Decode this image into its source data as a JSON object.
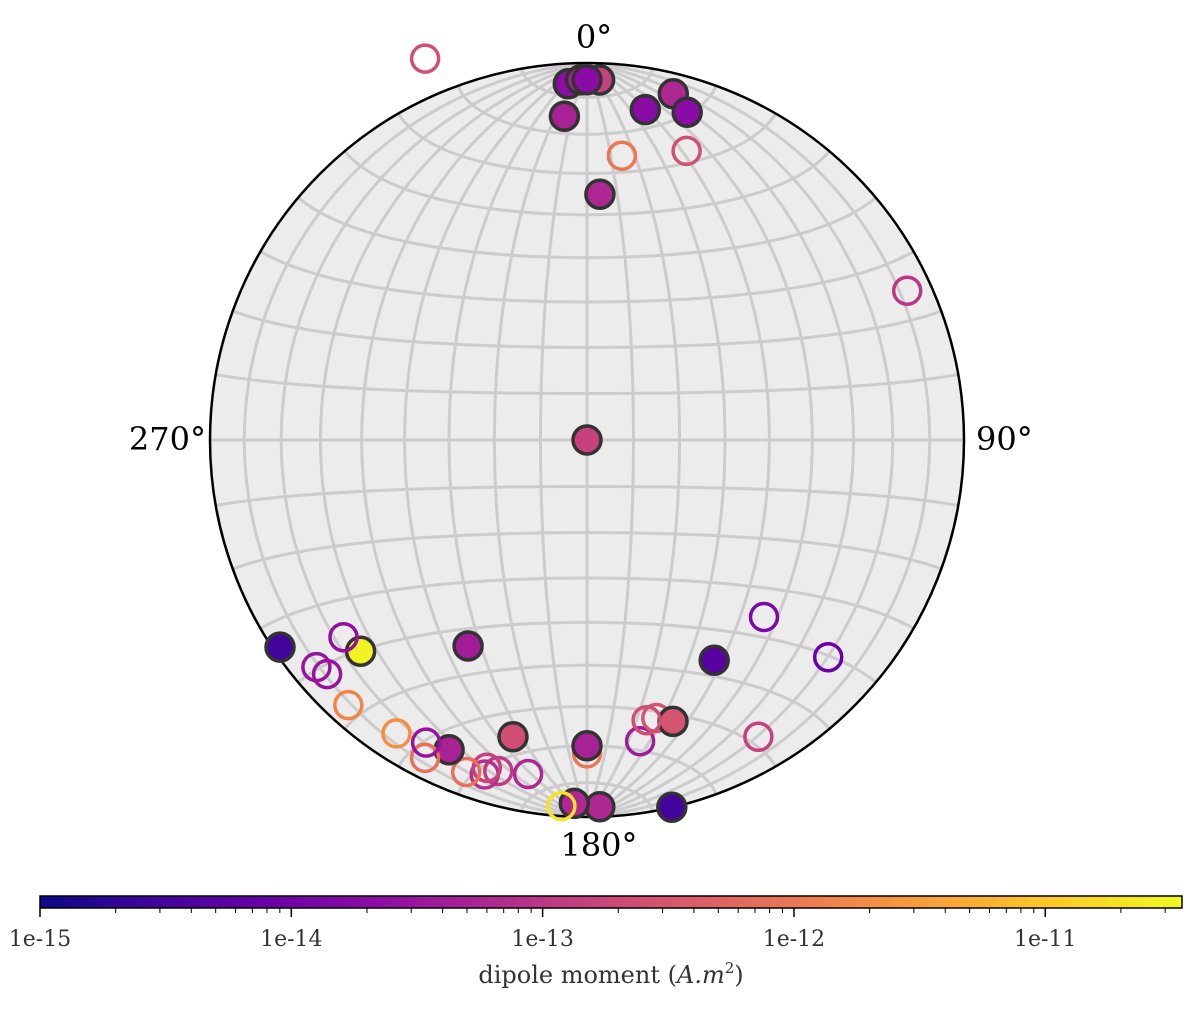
{
  "chart_data": {
    "type": "scatter",
    "projection": "equal-area stereonet (lower hemisphere filled, upper hemisphere open)",
    "grid": true,
    "direction_labels": {
      "north": "0°",
      "east": "90°",
      "south": "180°",
      "west": "270°"
    },
    "colormap": "plasma",
    "colors": {
      "background": "#ececec",
      "grid": "#cccccc",
      "edge_filled": "#333333",
      "outline": "#000000"
    },
    "colorbar": {
      "scale": "log",
      "range": [
        1e-15,
        3.5e-11
      ],
      "ticks": [
        {
          "value": 1e-15,
          "label": "1e-15"
        },
        {
          "value": 1e-14,
          "label": "1e-14"
        },
        {
          "value": 1e-13,
          "label": "1e-13"
        },
        {
          "value": 1e-12,
          "label": "1e-12"
        },
        {
          "value": 1e-11,
          "label": "1e-11"
        }
      ],
      "label_text": "dipole moment (",
      "label_var": "A.m",
      "label_sup": "2",
      "label_close": ")"
    },
    "points": [
      {
        "dec": 337,
        "inc": -12,
        "moment": 2.5e-13,
        "hemisphere": "upper"
      },
      {
        "dec": 357,
        "inc": 6,
        "moment": 2.2e-14,
        "hemisphere": "lower"
      },
      {
        "dec": 359,
        "inc": 5,
        "moment": 5e-14,
        "hemisphere": "lower"
      },
      {
        "dec": 2,
        "inc": 5,
        "moment": 1.5e-13,
        "hemisphere": "lower"
      },
      {
        "dec": 0,
        "inc": 5,
        "moment": 2e-14,
        "hemisphere": "lower"
      },
      {
        "dec": 356,
        "inc": 15,
        "moment": 5e-14,
        "hemisphere": "lower"
      },
      {
        "dec": 3,
        "inc": 35,
        "moment": 6e-14,
        "hemisphere": "lower"
      },
      {
        "dec": 10,
        "inc": 12,
        "moment": 2e-14,
        "hemisphere": "lower"
      },
      {
        "dec": 14,
        "inc": 6,
        "moment": 6e-14,
        "hemisphere": "lower"
      },
      {
        "dec": 17,
        "inc": 10,
        "moment": 2e-14,
        "hemisphere": "lower"
      },
      {
        "dec": 7,
        "inc": 25,
        "moment": 1e-12,
        "hemisphere": "upper"
      },
      {
        "dec": 19,
        "inc": 20,
        "moment": 2.5e-13,
        "hemisphere": "upper"
      },
      {
        "dec": 65,
        "inc": 7,
        "moment": 1e-13,
        "hemisphere": "upper"
      },
      {
        "dec": 135,
        "inc": 34,
        "moment": 1.5e-14,
        "hemisphere": "upper"
      },
      {
        "dec": 132,
        "inc": 15,
        "moment": 8e-15,
        "hemisphere": "upper"
      },
      {
        "dec": 150,
        "inc": 10,
        "moment": 1.5e-13,
        "hemisphere": "upper"
      },
      {
        "dec": 150,
        "inc": 33,
        "moment": 5e-15,
        "hemisphere": "lower"
      },
      {
        "dec": 167,
        "inc": 0,
        "moment": 3e-15,
        "hemisphere": "lower"
      },
      {
        "dec": 170,
        "inc": 20,
        "moment": 4e-14,
        "hemisphere": "upper"
      },
      {
        "dec": 166,
        "inc": 25,
        "moment": 3e-13,
        "hemisphere": "upper"
      },
      {
        "dec": 163,
        "inc": 23,
        "moment": 3e-13,
        "hemisphere": "lower"
      },
      {
        "dec": 168,
        "inc": 25,
        "moment": 2.3e-13,
        "hemisphere": "upper"
      },
      {
        "dec": 180,
        "inc": 18,
        "moment": 1e-12,
        "hemisphere": "upper"
      },
      {
        "dec": 180,
        "inc": 20,
        "moment": 5e-14,
        "hemisphere": "lower"
      },
      {
        "dec": 178,
        "inc": 3,
        "moment": 6e-14,
        "hemisphere": "lower"
      },
      {
        "dec": 182,
        "inc": 4,
        "moment": 6e-14,
        "hemisphere": "lower"
      },
      {
        "dec": 184,
        "inc": 3,
        "moment": 2e-11,
        "hemisphere": "upper"
      },
      {
        "dec": 194,
        "inc": 20,
        "moment": 2.3e-13,
        "hemisphere": "lower"
      },
      {
        "dec": 190,
        "inc": 11,
        "moment": 6e-14,
        "hemisphere": "upper"
      },
      {
        "dec": 195,
        "inc": 10,
        "moment": 1.2e-13,
        "hemisphere": "upper"
      },
      {
        "dec": 197,
        "inc": 8,
        "moment": 8e-14,
        "hemisphere": "upper"
      },
      {
        "dec": 197,
        "inc": 10,
        "moment": 1.5e-13,
        "hemisphere": "upper"
      },
      {
        "dec": 200,
        "inc": 7,
        "moment": 8e-13,
        "hemisphere": "upper"
      },
      {
        "dec": 204,
        "inc": 11,
        "moment": 5e-14,
        "hemisphere": "lower"
      },
      {
        "dec": 207,
        "inc": 6,
        "moment": 8e-13,
        "hemisphere": "upper"
      },
      {
        "dec": 208,
        "inc": 10,
        "moment": 3e-14,
        "hemisphere": "upper"
      },
      {
        "dec": 213,
        "inc": 8,
        "moment": 2e-12,
        "hemisphere": "upper"
      },
      {
        "dec": 210,
        "inc": 37,
        "moment": 4e-14,
        "hemisphere": "lower"
      },
      {
        "dec": 222,
        "inc": 6,
        "moment": 1.5e-12,
        "hemisphere": "upper"
      },
      {
        "dec": 228,
        "inc": 8,
        "moment": 3e-14,
        "hemisphere": "upper"
      },
      {
        "dec": 230,
        "inc": 7,
        "moment": 3e-14,
        "hemisphere": "upper"
      },
      {
        "dec": 227,
        "inc": 19,
        "moment": 3e-11,
        "hemisphere": "lower"
      },
      {
        "dec": 231,
        "inc": 18,
        "moment": 2.5e-14,
        "hemisphere": "upper"
      },
      {
        "dec": 236,
        "inc": 2,
        "moment": 3e-15,
        "hemisphere": "lower"
      },
      {
        "dec": 0,
        "inc": 90,
        "moment": 1.5e-13,
        "hemisphere": "lower"
      }
    ]
  }
}
